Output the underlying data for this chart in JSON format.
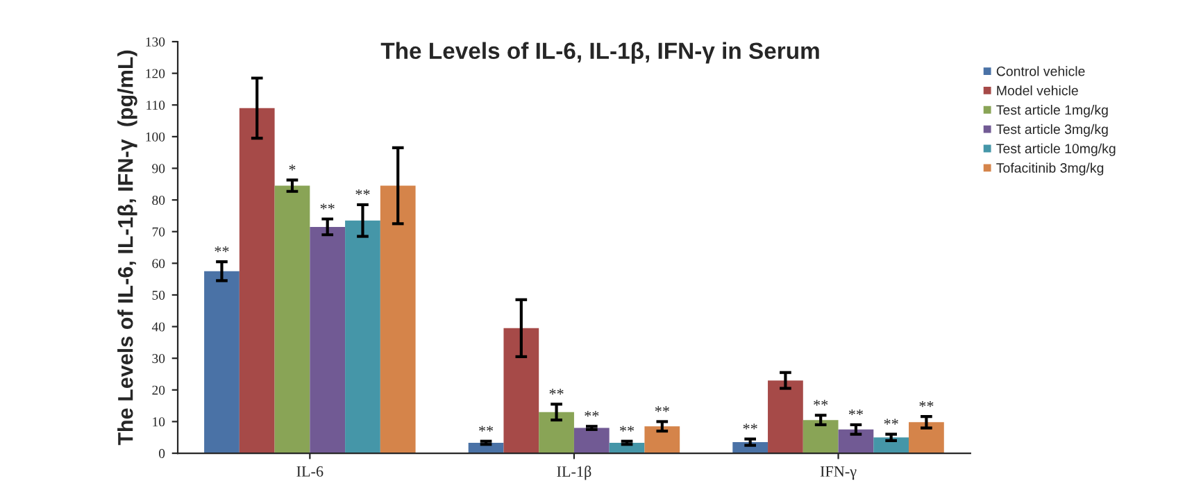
{
  "chart_data": {
    "type": "bar",
    "title": "The Levels of IL-6, IL-1β, IFN-γ in Serum",
    "ylabel": "The Levels of IL-6, IL-1β, IFN-γ  (pg/mL)",
    "categories": [
      "IL-6",
      "IL-1β",
      "IFN-γ"
    ],
    "series": [
      {
        "name": "Control vehicle",
        "color": "#4a72a6",
        "values": [
          57.5,
          3.3,
          3.5
        ],
        "errors": [
          3,
          0.5,
          1
        ],
        "value_labels": [
          "**",
          "**",
          "**"
        ]
      },
      {
        "name": "Model vehicle",
        "color": "#a64a48",
        "values": [
          109,
          39.5,
          23
        ],
        "errors": [
          9.5,
          9,
          2.5
        ],
        "value_labels": [
          null,
          null,
          null
        ]
      },
      {
        "name": "Test article 1mg/kg",
        "color": "#89a456",
        "values": [
          84.5,
          13,
          10.5
        ],
        "errors": [
          1.8,
          2.5,
          1.5
        ],
        "value_labels": [
          "*",
          "**",
          "**"
        ]
      },
      {
        "name": "Test article 3mg/kg",
        "color": "#715a94",
        "values": [
          71.5,
          8,
          7.5
        ],
        "errors": [
          2.5,
          0.5,
          1.5
        ],
        "value_labels": [
          "**",
          "**",
          "**"
        ]
      },
      {
        "name": "Test article 10mg/kg",
        "color": "#4596a8",
        "values": [
          73.5,
          3.3,
          5
        ],
        "errors": [
          5,
          0.5,
          1
        ],
        "value_labels": [
          "**",
          "**",
          "**"
        ]
      },
      {
        "name": "Tofacitinib 3mg/kg",
        "color": "#d5844a",
        "values": [
          84.5,
          8.5,
          9.8
        ],
        "errors": [
          12,
          1.5,
          1.8
        ],
        "value_labels": [
          null,
          "**",
          "**"
        ]
      }
    ],
    "ylim": [
      0,
      130
    ],
    "yticks": [
      0,
      10,
      20,
      30,
      40,
      50,
      60,
      70,
      80,
      90,
      100,
      110,
      120,
      130
    ],
    "grid": false,
    "legend": "top right"
  }
}
